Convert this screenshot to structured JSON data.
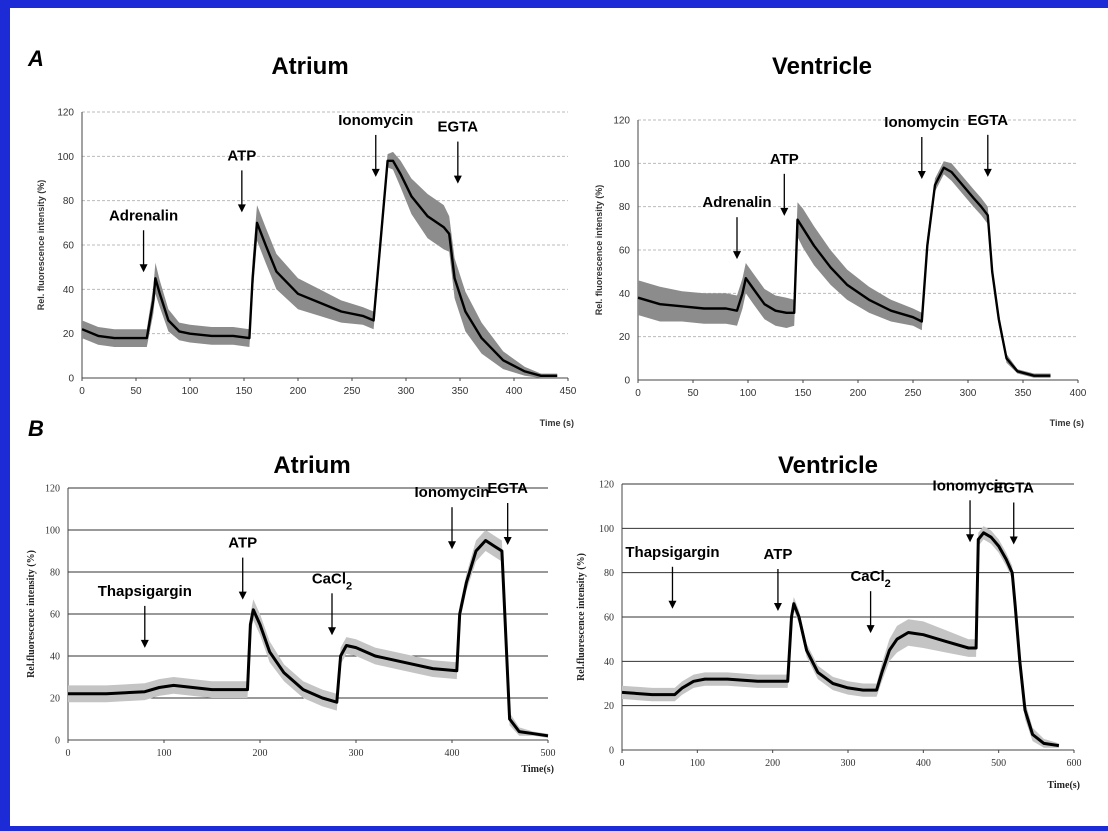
{
  "panels": [
    {
      "letter": "A"
    },
    {
      "letter": "B"
    }
  ],
  "chart_data": [
    {
      "id": "A-atrium",
      "type": "line",
      "title": "Atrium",
      "xlabel": "Time (s)",
      "ylabel": "Rel. fluorescence intensity (%)",
      "xlim": [
        0,
        450
      ],
      "ylim": [
        0,
        120
      ],
      "xticks": [
        0,
        50,
        100,
        150,
        200,
        250,
        300,
        350,
        400,
        450
      ],
      "yticks": [
        0,
        20,
        40,
        60,
        80,
        100,
        120
      ],
      "grid": true,
      "grid_style": "dashed",
      "band": "dark",
      "series": [
        {
          "x": [
            0,
            15,
            30,
            45,
            60,
            66,
            68,
            72,
            80,
            90,
            100,
            120,
            140,
            155,
            158,
            162,
            170,
            180,
            200,
            220,
            240,
            260,
            270,
            277,
            283,
            288,
            295,
            305,
            320,
            335,
            340,
            345,
            355,
            370,
            390,
            410,
            425,
            440
          ],
          "y": [
            22,
            19,
            18,
            18,
            18,
            35,
            45,
            38,
            26,
            21,
            20,
            19,
            19,
            18,
            45,
            70,
            60,
            48,
            38,
            34,
            30,
            28,
            26,
            65,
            98,
            98,
            92,
            82,
            73,
            68,
            65,
            45,
            30,
            18,
            8,
            3,
            1,
            1
          ],
          "band": [
            4,
            4,
            4,
            4,
            4,
            6,
            7,
            6,
            5,
            4,
            4,
            4,
            4,
            4,
            8,
            8,
            8,
            8,
            7,
            6,
            5,
            4,
            4,
            5,
            3,
            4,
            6,
            8,
            10,
            10,
            8,
            9,
            9,
            7,
            4,
            2,
            1,
            1
          ]
        }
      ],
      "annotations": [
        {
          "label": "Adrenalin",
          "x": 57,
          "y_tip": 45
        },
        {
          "label": "ATP",
          "x": 148,
          "y_tip": 72
        },
        {
          "label": "Ionomycin",
          "x": 272,
          "y_tip": 88
        },
        {
          "label": "EGTA",
          "x": 348,
          "y_tip": 85
        }
      ]
    },
    {
      "id": "A-ventricle",
      "type": "line",
      "title": "Ventricle",
      "xlabel": "Time (s)",
      "ylabel": "Rel. fluorescence intensity (%)",
      "xlim": [
        0,
        400
      ],
      "ylim": [
        0,
        120
      ],
      "xticks": [
        0,
        50,
        100,
        150,
        200,
        250,
        300,
        350,
        400
      ],
      "yticks": [
        0,
        20,
        40,
        60,
        80,
        100,
        120
      ],
      "grid": true,
      "grid_style": "dashed",
      "band": "dark",
      "series": [
        {
          "x": [
            0,
            20,
            40,
            60,
            80,
            90,
            95,
            98,
            105,
            115,
            125,
            135,
            142,
            145,
            150,
            160,
            175,
            190,
            210,
            230,
            250,
            258,
            263,
            270,
            278,
            285,
            295,
            305,
            312,
            318,
            322,
            328,
            335,
            345,
            360,
            375
          ],
          "y": [
            38,
            35,
            34,
            33,
            33,
            32,
            40,
            47,
            42,
            35,
            32,
            31,
            31,
            74,
            70,
            62,
            52,
            44,
            37,
            32,
            29,
            27,
            62,
            90,
            98,
            96,
            90,
            84,
            80,
            76,
            50,
            28,
            10,
            4,
            2,
            2
          ],
          "band": [
            8,
            8,
            7,
            7,
            7,
            7,
            7,
            7,
            7,
            7,
            7,
            7,
            6,
            8,
            9,
            9,
            8,
            7,
            6,
            5,
            4,
            4,
            4,
            3,
            3,
            4,
            4,
            4,
            4,
            4,
            3,
            3,
            2,
            1,
            1,
            1
          ]
        }
      ],
      "annotations": [
        {
          "label": "Adrenalin",
          "x": 90,
          "y_tip": 53
        },
        {
          "label": "ATP",
          "x": 133,
          "y_tip": 73
        },
        {
          "label": "Ionomycin",
          "x": 258,
          "y_tip": 90
        },
        {
          "label": "EGTA",
          "x": 318,
          "y_tip": 91
        }
      ]
    },
    {
      "id": "B-atrium",
      "type": "line",
      "title": "Atrium",
      "xlabel": "Time(s)",
      "ylabel": "Rel.fluorescence intensity (%)",
      "xlim": [
        0,
        500
      ],
      "ylim": [
        0,
        120
      ],
      "xticks": [
        0,
        100,
        200,
        300,
        400,
        500
      ],
      "yticks": [
        0,
        20,
        40,
        60,
        80,
        100,
        120
      ],
      "grid": true,
      "grid_style": "solid",
      "band": "light",
      "series": [
        {
          "x": [
            0,
            40,
            80,
            95,
            110,
            130,
            150,
            170,
            187,
            190,
            193,
            200,
            210,
            225,
            245,
            265,
            280,
            284,
            290,
            300,
            320,
            350,
            380,
            405,
            408,
            415,
            425,
            435,
            445,
            452,
            455,
            460,
            470,
            485,
            500
          ],
          "y": [
            22,
            22,
            23,
            25,
            26,
            25,
            24,
            24,
            24,
            55,
            62,
            55,
            42,
            32,
            24,
            20,
            18,
            40,
            45,
            44,
            40,
            37,
            34,
            33,
            60,
            75,
            90,
            95,
            92,
            90,
            60,
            10,
            4,
            3,
            2
          ],
          "band": [
            4,
            4,
            4,
            4,
            4,
            4,
            4,
            4,
            4,
            5,
            5,
            5,
            5,
            4,
            4,
            4,
            4,
            4,
            4,
            4,
            4,
            4,
            4,
            4,
            4,
            4,
            5,
            5,
            5,
            5,
            4,
            3,
            2,
            1,
            1
          ]
        }
      ],
      "annotations": [
        {
          "label": "Thapsigargin",
          "x": 80,
          "y_tip": 41
        },
        {
          "label": "ATP",
          "x": 182,
          "y_tip": 64
        },
        {
          "label": "CaCl",
          "sub": "2",
          "x": 275,
          "y_tip": 47
        },
        {
          "label": "Ionomycin",
          "x": 400,
          "y_tip": 88
        },
        {
          "label": "EGTA",
          "x": 458,
          "y_tip": 90
        }
      ]
    },
    {
      "id": "B-ventricle",
      "type": "line",
      "title": "Ventricle",
      "xlabel": "Time(s)",
      "ylabel": "Rel.fluorescence intensity (%)",
      "xlim": [
        0,
        600
      ],
      "ylim": [
        0,
        120
      ],
      "xticks": [
        0,
        100,
        200,
        300,
        400,
        500,
        600
      ],
      "yticks": [
        0,
        20,
        40,
        60,
        80,
        100,
        120
      ],
      "grid": true,
      "grid_style": "solid",
      "band": "light",
      "series": [
        {
          "x": [
            0,
            40,
            70,
            80,
            95,
            110,
            140,
            180,
            220,
            225,
            228,
            235,
            245,
            260,
            280,
            300,
            320,
            338,
            345,
            355,
            365,
            380,
            400,
            430,
            460,
            470,
            473,
            480,
            490,
            500,
            510,
            518,
            522,
            528,
            535,
            545,
            560,
            580
          ],
          "y": [
            26,
            25,
            25,
            28,
            31,
            32,
            32,
            31,
            31,
            60,
            66,
            60,
            45,
            35,
            30,
            28,
            27,
            27,
            35,
            45,
            50,
            53,
            52,
            49,
            46,
            46,
            95,
            98,
            96,
            92,
            86,
            80,
            65,
            40,
            18,
            7,
            3,
            2
          ],
          "band": [
            3,
            3,
            3,
            3,
            3,
            3,
            3,
            3,
            3,
            3,
            3,
            3,
            3,
            3,
            3,
            3,
            3,
            3,
            4,
            5,
            6,
            6,
            6,
            5,
            4,
            4,
            3,
            3,
            3,
            3,
            3,
            3,
            4,
            5,
            4,
            3,
            2,
            1
          ]
        }
      ],
      "annotations": [
        {
          "label": "Thapsigargin",
          "x": 67,
          "y_tip": 61
        },
        {
          "label": "ATP",
          "x": 207,
          "y_tip": 60
        },
        {
          "label": "CaCl",
          "sub": "2",
          "x": 330,
          "y_tip": 50
        },
        {
          "label": "Ionomycin",
          "x": 462,
          "y_tip": 91
        },
        {
          "label": "EGTA",
          "x": 520,
          "y_tip": 90
        }
      ]
    }
  ]
}
